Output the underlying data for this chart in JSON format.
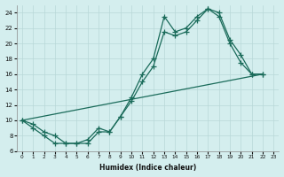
{
  "xlabel": "Humidex (Indice chaleur)",
  "bg_color": "#d4eeee",
  "grid_color": "#b8d8d8",
  "line_color": "#1a6b5a",
  "xlim": [
    -0.5,
    23.5
  ],
  "ylim": [
    6,
    25
  ],
  "yticks": [
    6,
    8,
    10,
    12,
    14,
    16,
    18,
    20,
    22,
    24
  ],
  "xticks": [
    0,
    1,
    2,
    3,
    4,
    5,
    6,
    7,
    8,
    9,
    10,
    11,
    12,
    13,
    14,
    15,
    16,
    17,
    18,
    19,
    20,
    21,
    22,
    23
  ],
  "line1_x": [
    0,
    1,
    2,
    3,
    4,
    5,
    6,
    7,
    8,
    9,
    10,
    11,
    12,
    13,
    14,
    15,
    16,
    17,
    18,
    19,
    20,
    21,
    22
  ],
  "line1_y": [
    10,
    9,
    8,
    7,
    7,
    7,
    7,
    8.5,
    8.5,
    10.5,
    13,
    16,
    18,
    23.5,
    21.5,
    22,
    23.5,
    24.5,
    24,
    20.5,
    18.5,
    16,
    16
  ],
  "line2_x": [
    0,
    1,
    2,
    3,
    4,
    5,
    6,
    7,
    8,
    9,
    10,
    11,
    12,
    13,
    14,
    15,
    16,
    17,
    18,
    19,
    20,
    21,
    22
  ],
  "line2_y": [
    10,
    9.5,
    8.5,
    8,
    7,
    7,
    7.5,
    9,
    8.5,
    10.5,
    12.5,
    15,
    17,
    21.5,
    21,
    21.5,
    23,
    24.5,
    23.5,
    20,
    17.5,
    16,
    16
  ],
  "line3_x": [
    0,
    22
  ],
  "line3_y": [
    10,
    16
  ]
}
